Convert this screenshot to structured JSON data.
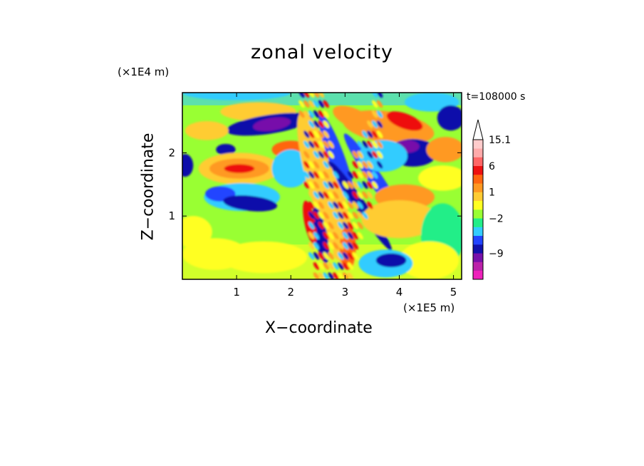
{
  "chart_data": {
    "type": "heatmap",
    "title": "zonal velocity",
    "xlabel": "X−coordinate",
    "ylabel": "Z−coordinate",
    "x_scale_label": "(×1E5 m)",
    "y_scale_label": "(×1E4 m)",
    "time_label": "t=108000 s",
    "xlim": [
      0,
      5.15
    ],
    "ylim": [
      0,
      2.95
    ],
    "x_ticks": [
      1,
      2,
      3,
      4,
      5
    ],
    "x_tick_labels": [
      "1",
      "2",
      "3",
      "4",
      "5"
    ],
    "y_ticks": [
      1,
      2
    ],
    "y_tick_labels": [
      "1",
      "2"
    ],
    "colorbar": {
      "colors": [
        "#ee22bb",
        "#bb22aa",
        "#7711aa",
        "#1111aa",
        "#2244ff",
        "#33ccff",
        "#22ee88",
        "#99ff33",
        "#ffff22",
        "#ffcc33",
        "#ff9922",
        "#ff6611",
        "#ee1111",
        "#ff6666",
        "#ffaaaa",
        "#ffcccc"
      ],
      "labels": [
        {
          "text": "15.1",
          "index": 15
        },
        {
          "text": "6",
          "index": 12
        },
        {
          "text": "1",
          "index": 9
        },
        {
          "text": "−2",
          "index": 6
        },
        {
          "text": "−9",
          "index": 2
        }
      ],
      "extend": "max"
    },
    "field_features": {
      "background": [
        "#99ff33",
        -0.5
      ],
      "blobs": [
        [
          1.0,
          2.95,
          1.0,
          0.12,
          "#33ccff",
          0
        ],
        [
          1.4,
          2.65,
          0.7,
          0.15,
          "#ffcc33",
          0
        ],
        [
          1.6,
          2.45,
          0.8,
          0.15,
          "#1111aa",
          -0.15
        ],
        [
          1.65,
          2.45,
          0.35,
          0.1,
          "#7711aa",
          -0.15
        ],
        [
          0.45,
          2.35,
          0.4,
          0.15,
          "#ffcc33",
          0
        ],
        [
          0.8,
          2.05,
          0.18,
          0.09,
          "#1111aa",
          0
        ],
        [
          1.05,
          1.75,
          0.75,
          0.25,
          "#ffcc33",
          0
        ],
        [
          1.05,
          1.75,
          0.55,
          0.16,
          "#ff9922",
          0
        ],
        [
          1.05,
          1.75,
          0.28,
          0.07,
          "#ee1111",
          0
        ],
        [
          2.0,
          2.05,
          0.35,
          0.14,
          "#ff6611",
          0
        ],
        [
          0.05,
          1.8,
          0.15,
          0.18,
          "#1111aa",
          0
        ],
        [
          1.1,
          1.3,
          0.7,
          0.22,
          "#33ccff",
          0
        ],
        [
          0.7,
          1.35,
          0.28,
          0.12,
          "#2244ff",
          0
        ],
        [
          1.25,
          1.2,
          0.5,
          0.12,
          "#1111aa",
          0.1
        ],
        [
          0.2,
          0.75,
          0.35,
          0.25,
          "#ffff22",
          0
        ],
        [
          0.6,
          0.4,
          0.6,
          0.25,
          "#ffff22",
          0
        ],
        [
          1.5,
          0.35,
          0.8,
          0.25,
          "#ffff22",
          0
        ],
        [
          2.0,
          1.75,
          0.35,
          0.3,
          "#33ccff",
          0
        ],
        [
          2.65,
          1.4,
          0.3,
          1.3,
          "#ffcc33",
          -0.3
        ],
        [
          2.85,
          1.9,
          0.15,
          0.75,
          "#2244ff",
          -0.35
        ],
        [
          2.55,
          0.7,
          0.12,
          0.45,
          "#1111aa",
          -0.2
        ],
        [
          3.05,
          0.5,
          0.15,
          0.35,
          "#ff6611",
          0
        ],
        [
          2.35,
          0.9,
          0.1,
          0.35,
          "#ee1111",
          -0.2
        ],
        [
          3.3,
          1.15,
          0.1,
          0.85,
          "#1111aa",
          -0.6
        ],
        [
          3.55,
          1.6,
          0.13,
          0.85,
          "#2244ff",
          -0.6
        ],
        [
          3.15,
          2.55,
          0.4,
          0.15,
          "#ff9922",
          0.4
        ],
        [
          3.8,
          2.4,
          0.85,
          0.25,
          "#ff9922",
          0.15
        ],
        [
          4.1,
          2.5,
          0.35,
          0.12,
          "#ee1111",
          0.35
        ],
        [
          4.25,
          2.0,
          0.45,
          0.22,
          "#1111aa",
          0
        ],
        [
          4.15,
          2.1,
          0.22,
          0.1,
          "#7711aa",
          0
        ],
        [
          3.7,
          1.95,
          0.45,
          0.25,
          "#33ccff",
          0
        ],
        [
          4.85,
          2.05,
          0.35,
          0.2,
          "#ff9922",
          0
        ],
        [
          4.8,
          1.6,
          0.45,
          0.2,
          "#ffff22",
          0
        ],
        [
          4.1,
          1.3,
          0.55,
          0.2,
          "#ff9922",
          0
        ],
        [
          4.0,
          0.95,
          0.7,
          0.3,
          "#ffcc33",
          0
        ],
        [
          4.8,
          0.7,
          0.4,
          0.5,
          "#22ee88",
          0
        ],
        [
          4.55,
          0.3,
          0.55,
          0.3,
          "#ffff22",
          0
        ],
        [
          3.75,
          0.25,
          0.5,
          0.22,
          "#33ccff",
          0
        ],
        [
          3.85,
          0.3,
          0.28,
          0.11,
          "#1111aa",
          0
        ],
        [
          4.6,
          2.8,
          0.5,
          0.15,
          "#33ccff",
          0
        ],
        [
          4.95,
          2.55,
          0.25,
          0.2,
          "#1111aa",
          0
        ]
      ],
      "wave_band": {
        "x": [
          2.2,
          3.7
        ],
        "colors": [
          "#ff9922",
          "#ffcc33",
          "#33ccff",
          "#1111aa",
          "#ee1111",
          "#ffff22"
        ]
      }
    }
  }
}
